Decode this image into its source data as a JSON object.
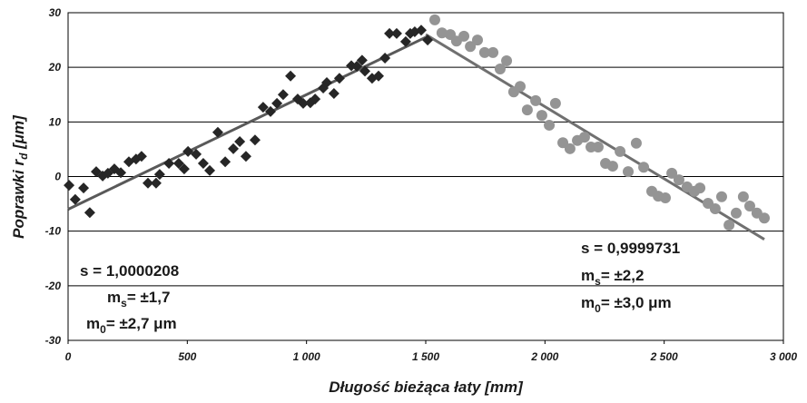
{
  "chart_data": {
    "type": "scatter",
    "x_label": "Długość bieżąca łaty [mm]",
    "y_label": {
      "text": "Poprawki r",
      "sub": "d",
      "rest": " [μm]"
    },
    "xlim": [
      0,
      3000
    ],
    "xticks": [
      0,
      500,
      {
        "value": 1000,
        "label": "1 000"
      },
      {
        "value": 1500,
        "label": "1 500"
      },
      {
        "value": 2000,
        "label": "2 000"
      },
      {
        "value": 2500,
        "label": "2 500"
      },
      {
        "value": 3000,
        "label": "3 000"
      }
    ],
    "ylim": [
      -30,
      30
    ],
    "yticks": [
      -30,
      -20,
      -10,
      0,
      10,
      20,
      30
    ],
    "grid": true,
    "series": [
      {
        "marker": "diamond",
        "color": "#262626",
        "x": [
          4,
          30,
          65,
          91,
          118,
          145,
          167,
          194,
          221,
          255,
          285,
          308,
          335,
          369,
          384,
          423,
          464,
          487,
          503,
          537,
          567,
          594,
          628,
          659,
          693,
          720,
          746,
          784,
          818,
          849,
          876,
          902,
          933,
          963,
          986,
          1016,
          1036,
          1070,
          1085,
          1115,
          1138,
          1188,
          1211,
          1233,
          1245,
          1275,
          1302,
          1329,
          1348,
          1378,
          1416,
          1435,
          1454,
          1481,
          1508
        ],
        "values": [
          -1.6,
          -4.2,
          -2.1,
          -6.6,
          0.9,
          0.1,
          0.6,
          1.4,
          0.7,
          2.7,
          3.2,
          3.7,
          -1.2,
          -1.2,
          0.4,
          2.4,
          2.4,
          1.4,
          4.6,
          4.1,
          2.4,
          1.1,
          8.1,
          2.7,
          5.1,
          6.4,
          3.7,
          6.7,
          12.7,
          11.9,
          13.4,
          15.0,
          18.4,
          14.2,
          13.4,
          13.5,
          14.2,
          16.2,
          17.2,
          15.2,
          18.0,
          20.3,
          20.2,
          21.3,
          19.3,
          18.0,
          18.4,
          21.7,
          26.2,
          26.2,
          24.7,
          26.2,
          26.5,
          26.8,
          25.0
        ]
      },
      {
        "marker": "circle",
        "color": "#949494",
        "x": [
          1538,
          1568,
          1603,
          1629,
          1660,
          1687,
          1717,
          1747,
          1782,
          1812,
          1839,
          1869,
          1896,
          1926,
          1961,
          1987,
          2018,
          2044,
          2075,
          2105,
          2136,
          2166,
          2193,
          2223,
          2254,
          2284,
          2315,
          2349,
          2383,
          2414,
          2448,
          2475,
          2505,
          2532,
          2562,
          2596,
          2627,
          2650,
          2684,
          2714,
          2741,
          2772,
          2802,
          2832,
          2859,
          2889,
          2920
        ],
        "values": [
          28.7,
          26.3,
          26.0,
          24.8,
          25.7,
          23.8,
          25.0,
          22.7,
          22.7,
          19.7,
          21.2,
          15.5,
          16.5,
          12.2,
          13.9,
          11.2,
          9.4,
          13.4,
          6.2,
          5.1,
          6.6,
          7.2,
          5.4,
          5.4,
          2.4,
          1.9,
          4.6,
          0.9,
          6.1,
          1.7,
          -2.7,
          -3.6,
          -3.9,
          0.6,
          -0.6,
          -1.9,
          -2.7,
          -2.1,
          -4.9,
          -5.9,
          -3.7,
          -8.9,
          -6.7,
          -3.7,
          -5.4,
          -6.7,
          -7.6
        ]
      }
    ],
    "fit_lines": [
      {
        "color": "#595959",
        "x": [
          0,
          1500
        ],
        "values": [
          -6,
          25.5
        ]
      },
      {
        "color": "#707070",
        "x": [
          1500,
          2920
        ],
        "values": [
          26,
          -11.5
        ]
      }
    ],
    "annotations": [
      {
        "lines": [
          {
            "text": "s = 1,0000208"
          },
          {
            "text": "m",
            "sub": "s",
            "rest": "= ±1,7"
          },
          {
            "text": "m",
            "sub": "0",
            "rest": "= ±2,7 μm"
          }
        ]
      },
      {
        "lines": [
          {
            "text": "s = 0,9999731"
          },
          {
            "text": "m",
            "sub": "s",
            "rest": "= ±2,2"
          },
          {
            "text": "m",
            "sub": "0",
            "rest": "= ±3,0 μm"
          }
        ]
      }
    ]
  }
}
